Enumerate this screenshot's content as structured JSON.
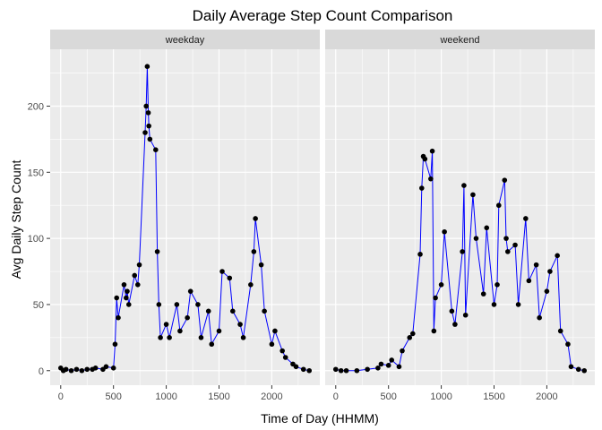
{
  "chart_data": {
    "type": "line",
    "title": "Daily Average Step Count Comparison",
    "xlabel": "Time of Day (HHMM)",
    "ylabel": "Avg Daily Step Count",
    "xlim": [
      -100,
      2455
    ],
    "ylim": [
      -11,
      243
    ],
    "x_ticks": [
      0,
      500,
      1000,
      1500,
      2000
    ],
    "y_ticks": [
      0,
      50,
      100,
      150,
      200
    ],
    "grid": true,
    "colors": {
      "line": "#0000ff",
      "point": "#000000",
      "panel": "#ebebeb",
      "strip": "#d9d9d9",
      "grid": "#ffffff"
    },
    "facets": [
      {
        "name": "weekday",
        "series": [
          {
            "x": [
              0,
              25,
              50,
              100,
              150,
              200,
              250,
              300,
              330,
              400,
              430,
              500,
              515,
              530,
              545,
              600,
              620,
              630,
              645,
              700,
              730,
              745,
              800,
              810,
              820,
              830,
              835,
              845,
              900,
              915,
              930,
              945,
              1000,
              1030,
              1100,
              1130,
              1200,
              1230,
              1300,
              1330,
              1400,
              1430,
              1500,
              1530,
              1600,
              1630,
              1700,
              1730,
              1800,
              1830,
              1845,
              1900,
              1930,
              2000,
              2030,
              2100,
              2130,
              2200,
              2230,
              2300,
              2355
            ],
            "values": [
              2,
              0,
              1,
              0,
              1,
              0,
              1,
              1,
              2,
              1,
              3,
              2,
              20,
              55,
              40,
              65,
              55,
              60,
              50,
              72,
              65,
              80,
              180,
              200,
              230,
              195,
              185,
              175,
              167,
              90,
              50,
              25,
              35,
              25,
              50,
              30,
              40,
              60,
              50,
              25,
              45,
              20,
              30,
              75,
              70,
              45,
              35,
              25,
              65,
              90,
              115,
              80,
              45,
              20,
              30,
              15,
              10,
              5,
              3,
              1,
              0
            ]
          }
        ]
      },
      {
        "name": "weekend",
        "series": [
          {
            "x": [
              0,
              50,
              100,
              200,
              300,
              400,
              430,
              500,
              530,
              600,
              630,
              700,
              730,
              800,
              815,
              830,
              845,
              900,
              915,
              930,
              945,
              1000,
              1030,
              1100,
              1130,
              1200,
              1215,
              1230,
              1300,
              1330,
              1400,
              1430,
              1500,
              1530,
              1545,
              1600,
              1615,
              1630,
              1700,
              1730,
              1800,
              1830,
              1900,
              1930,
              2000,
              2030,
              2100,
              2130,
              2200,
              2230,
              2300,
              2355
            ],
            "values": [
              1,
              0,
              0,
              0,
              1,
              2,
              5,
              4,
              8,
              3,
              15,
              25,
              28,
              88,
              138,
              162,
              160,
              145,
              166,
              30,
              55,
              65,
              105,
              45,
              35,
              90,
              140,
              42,
              133,
              100,
              58,
              108,
              50,
              65,
              125,
              144,
              100,
              90,
              95,
              50,
              115,
              68,
              80,
              40,
              60,
              75,
              87,
              30,
              20,
              3,
              1,
              0
            ]
          }
        ]
      }
    ]
  }
}
